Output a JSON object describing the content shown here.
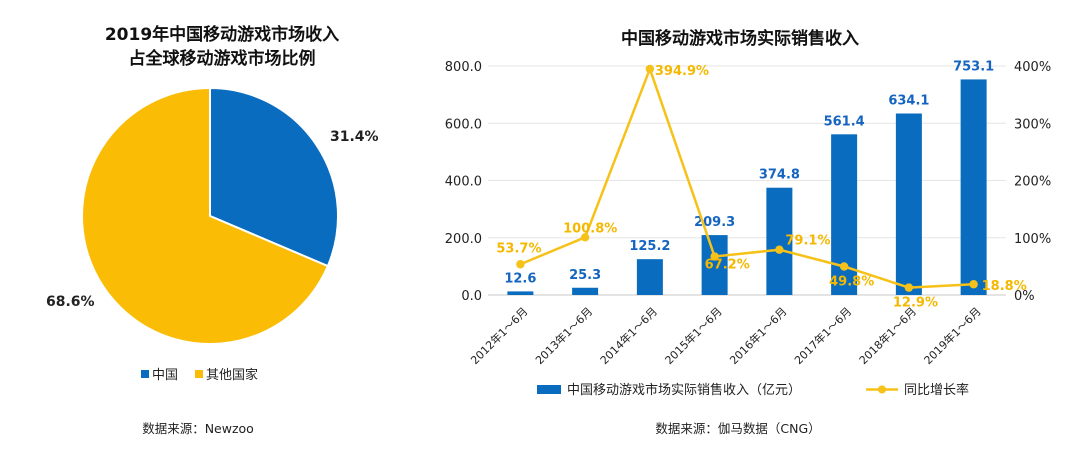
{
  "colors": {
    "blue": "#0a6cbf",
    "yellow": "#fbbc05",
    "line": "#f6c219",
    "grid": "#e6e6e6",
    "axis": "#c8c8c8"
  },
  "chart_data": [
    {
      "type": "pie",
      "title_lines": [
        "2019年中国移动游戏市场收入",
        "占全球移动游戏市场比例"
      ],
      "slices": [
        {
          "name": "中国",
          "value": 31.4,
          "label": "31.4%",
          "color": "#0a6cbf"
        },
        {
          "name": "其他国家",
          "value": 68.6,
          "label": "68.6%",
          "color": "#fbbc05"
        }
      ],
      "legend_placement": "bottom",
      "source": "数据来源：Newzoo"
    },
    {
      "type": "bar",
      "title": "中国移动游戏市场实际销售收入",
      "categories": [
        "2012年1～6月",
        "2013年1～6月",
        "2014年1～6月",
        "2015年1～6月",
        "2016年1～6月",
        "2017年1～6月",
        "2018年1～6月",
        "2019年1～6月"
      ],
      "series": [
        {
          "name": "中国移动游戏市场实际销售收入（亿元）",
          "kind": "bar",
          "axis": "left",
          "values": [
            12.6,
            25.3,
            125.2,
            209.3,
            374.8,
            561.4,
            634.1,
            753.1
          ],
          "labels": [
            "12.6",
            "25.3",
            "125.2",
            "209.3",
            "374.8",
            "561.4",
            "634.1",
            "753.1"
          ]
        },
        {
          "name": "同比增长率",
          "kind": "line",
          "axis": "right",
          "values": [
            53.7,
            100.8,
            394.9,
            67.2,
            79.1,
            49.8,
            12.9,
            18.8
          ],
          "labels": [
            "53.7%",
            "100.8%",
            "394.9%",
            "67.2%",
            "79.1%",
            "49.8%",
            "12.9%",
            "18.8%"
          ]
        }
      ],
      "ylim_left": [
        0,
        800
      ],
      "yticks_left": [
        "0.0",
        "200.0",
        "400.0",
        "600.0",
        "800.0"
      ],
      "ylim_right": [
        0,
        400
      ],
      "yticks_right": [
        "0%",
        "100%",
        "200%",
        "300%",
        "400%"
      ],
      "grid": true,
      "legend_placement": "bottom",
      "source": "数据来源：伽马数据（CNG）"
    }
  ]
}
